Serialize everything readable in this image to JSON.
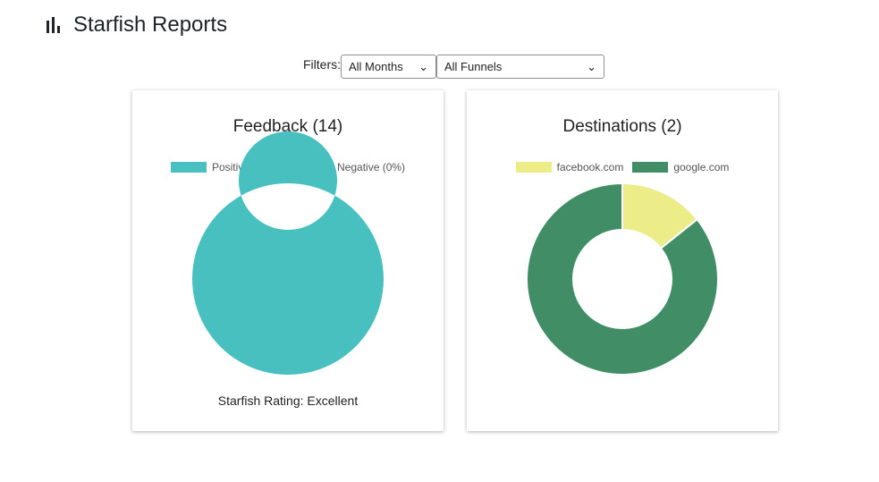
{
  "header": {
    "title": "Starfish Reports",
    "icon": "bar-chart-icon"
  },
  "filters": {
    "label": "Filters:",
    "month": "All Months",
    "funnel": "All Funnels"
  },
  "chart_data": [
    {
      "type": "pie",
      "title": "Feedback (14)",
      "donut": true,
      "categories": [
        "Positive (100%)",
        "Negative (0%)"
      ],
      "values": [
        14,
        0
      ],
      "colors": [
        "#47c0bf",
        "#ff4a55"
      ],
      "legend": "top",
      "footer": "Starfish Rating: Excellent"
    },
    {
      "type": "pie",
      "title": "Destinations (2)",
      "donut": true,
      "categories": [
        "facebook.com",
        "google.com"
      ],
      "values": [
        1,
        6
      ],
      "colors": [
        "#ecec88",
        "#418e66"
      ],
      "legend": "top"
    }
  ]
}
